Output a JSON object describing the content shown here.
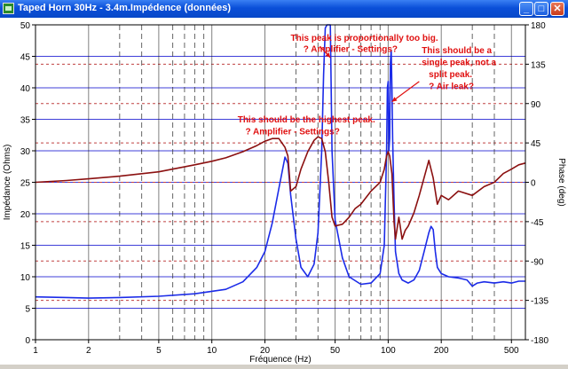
{
  "window": {
    "title": "Taped Horn 30Hz - 3.4m.Impédence (données)",
    "minimize_glyph": "_",
    "maximize_glyph": "□",
    "close_glyph": "✕",
    "icon": "app-icon"
  },
  "chart_data": {
    "type": "line",
    "x_scale": "log",
    "xlim": [
      1,
      600
    ],
    "x_ticks": [
      1,
      2,
      5,
      10,
      20,
      50,
      100,
      200,
      500
    ],
    "xlabel": "Fréquence (Hz)",
    "ylabel": "Impédance (Ohms)",
    "ylim": [
      0,
      50
    ],
    "y_ticks": [
      0,
      5,
      10,
      15,
      20,
      25,
      30,
      35,
      40,
      45,
      50
    ],
    "y2label": "Phase (deg)",
    "y2lim": [
      -180,
      180
    ],
    "y2_ticks": [
      -180,
      -135,
      -90,
      -45,
      0,
      45,
      90,
      135,
      180
    ],
    "grid": true,
    "colors": {
      "impedance": "#1b2be8",
      "phase": "#8b1010",
      "annotation": "#e01010",
      "grid_major": "#1010d0",
      "grid_phase": "#c04040"
    },
    "series": [
      {
        "key": "impedance",
        "axis": "left",
        "x": [
          1,
          1.5,
          2,
          3,
          5,
          8,
          12,
          15,
          18,
          20,
          22,
          24,
          26,
          27,
          28,
          30,
          32,
          35,
          38,
          40,
          42,
          43,
          44,
          45,
          46,
          47,
          48,
          50,
          55,
          60,
          70,
          80,
          90,
          95,
          98,
          99,
          100,
          101,
          102,
          103,
          104,
          105,
          106,
          108,
          110,
          115,
          120,
          130,
          140,
          150,
          160,
          170,
          175,
          180,
          185,
          190,
          200,
          220,
          250,
          280,
          300,
          320,
          350,
          400,
          450,
          500,
          550,
          600
        ],
        "y": [
          6.8,
          6.7,
          6.6,
          6.7,
          6.9,
          7.3,
          8.0,
          9.2,
          11.5,
          14.0,
          18.5,
          24.0,
          29.0,
          28.0,
          23.0,
          16.0,
          11.5,
          10.0,
          12.0,
          17.0,
          30.0,
          42.0,
          49.5,
          50.0,
          50.0,
          50.0,
          30.0,
          19.0,
          13.0,
          10.0,
          8.8,
          9.0,
          10.5,
          15.0,
          30.0,
          40.0,
          41.0,
          30.0,
          32.0,
          44.0,
          46.0,
          40.0,
          32.0,
          22.0,
          14.0,
          10.5,
          9.5,
          9.0,
          9.5,
          11.0,
          14.0,
          17.0,
          18.0,
          17.5,
          14.0,
          11.5,
          10.5,
          10.0,
          9.8,
          9.5,
          8.5,
          9.0,
          9.2,
          9.0,
          9.2,
          9.0,
          9.3,
          9.3
        ]
      },
      {
        "key": "phase",
        "axis": "right",
        "x": [
          1,
          1.5,
          2,
          3,
          5,
          8,
          10,
          12,
          15,
          18,
          20,
          22,
          24,
          26,
          27,
          28,
          30,
          32,
          35,
          38,
          40,
          42,
          44,
          46,
          48,
          50,
          55,
          60,
          65,
          70,
          80,
          90,
          95,
          98,
          100,
          102,
          105,
          108,
          110,
          115,
          120,
          125,
          130,
          140,
          150,
          170,
          180,
          190,
          200,
          220,
          250,
          300,
          350,
          400,
          450,
          500,
          550,
          600
        ],
        "y": [
          0,
          2,
          4,
          7,
          12,
          20,
          24,
          28,
          35,
          42,
          47,
          50,
          50,
          40,
          30,
          -10,
          -5,
          15,
          35,
          48,
          52,
          50,
          35,
          0,
          -40,
          -50,
          -48,
          -40,
          -30,
          -25,
          -10,
          0,
          15,
          30,
          35,
          30,
          10,
          -45,
          -65,
          -40,
          -65,
          -55,
          -50,
          -35,
          -15,
          25,
          5,
          -25,
          -15,
          -20,
          -10,
          -15,
          -5,
          0,
          10,
          15,
          20,
          22
        ]
      }
    ],
    "annotations": [
      {
        "text": "This peak is proportionally too big.",
        "x": 28,
        "y": 47.5
      },
      {
        "text": "? Amplifier - Settings?",
        "x": 33,
        "y": 45.7
      },
      {
        "text": "This should be the highest peak.",
        "x": 14,
        "y": 34.5
      },
      {
        "text": "? Amplifier - Settings?",
        "x": 15.5,
        "y": 32.6
      },
      {
        "text": "This should be a",
        "x": 155,
        "y": 45.5
      },
      {
        "text": "single peak, not a",
        "x": 155,
        "y": 43.6
      },
      {
        "text": "split peak.",
        "x": 170,
        "y": 41.7
      },
      {
        "text": "? Air leak?",
        "x": 170,
        "y": 39.8
      }
    ],
    "arrows": [
      {
        "from": [
          41,
          46.6
        ],
        "to": [
          47,
          44.8
        ]
      },
      {
        "from": [
          150,
          41.0
        ],
        "to": [
          105,
          37.8
        ]
      }
    ]
  }
}
